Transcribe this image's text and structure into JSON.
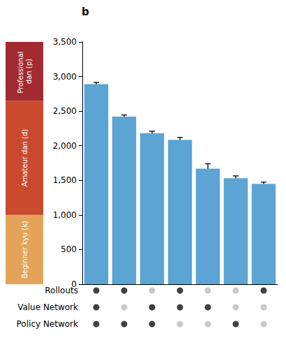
{
  "chart_data": {
    "type": "bar",
    "title": "b",
    "categories": [
      null,
      null,
      null,
      null,
      null,
      null,
      null
    ],
    "values": [
      2890,
      2420,
      2180,
      2085,
      1670,
      1530,
      1450
    ],
    "errors": [
      25,
      25,
      30,
      35,
      70,
      35,
      25
    ],
    "color": "#5ba4d4",
    "ylim": [
      0,
      3500
    ],
    "yticks": [
      0,
      500,
      1000,
      1500,
      2000,
      2500,
      3000,
      3500
    ],
    "grid": false,
    "tick_labels": "y",
    "rank_bands": [
      {
        "label": "Beginner kyu (k)",
        "from": 0,
        "to": 1000,
        "color": "#e3a45a"
      },
      {
        "label": "Amateur dan (d)",
        "from": 1000,
        "to": 2650,
        "color": "#c94a2c"
      },
      {
        "label": "Professional dan (p)",
        "from": 2650,
        "to": 3500,
        "color": "#a32a30"
      }
    ],
    "indicators": [
      {
        "name": "Rollouts",
        "values": [
          true,
          true,
          false,
          true,
          false,
          false,
          true
        ]
      },
      {
        "name": "Value Network",
        "values": [
          true,
          false,
          true,
          true,
          true,
          false,
          false
        ]
      },
      {
        "name": "Policy Network",
        "values": [
          true,
          true,
          true,
          false,
          false,
          true,
          false
        ]
      }
    ]
  }
}
